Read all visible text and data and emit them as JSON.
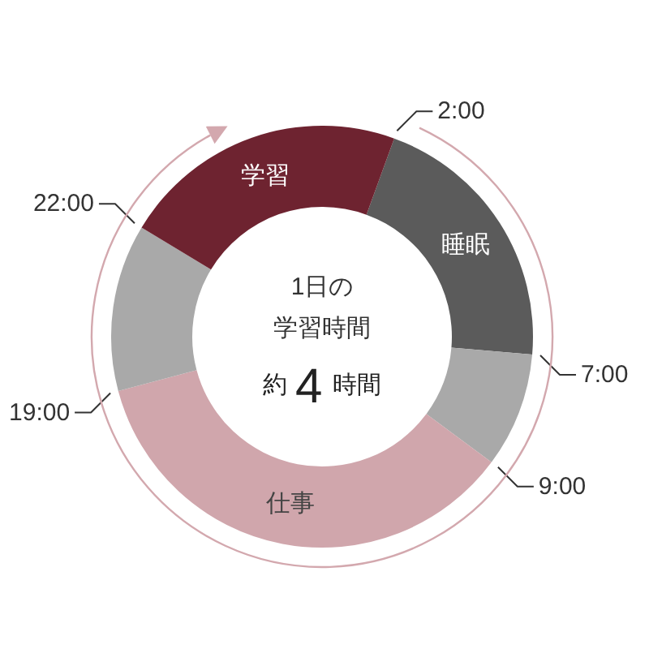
{
  "chart_data": {
    "type": "donut",
    "title": "1日の学習時間",
    "subtitle": "約4時間",
    "categories": [
      "睡眠",
      null,
      "仕事",
      null,
      "学習"
    ],
    "values": [
      20.8,
      8.8,
      35.7,
      12.8,
      21.9
    ],
    "colors": [
      "#5b5b5b",
      "#a9a9a9",
      "#d0a6ac",
      "#a9a9a9",
      "#6e2330"
    ],
    "annotations": [
      "2:00",
      "7:00",
      "9:00",
      "19:00",
      "22:00"
    ]
  }
}
